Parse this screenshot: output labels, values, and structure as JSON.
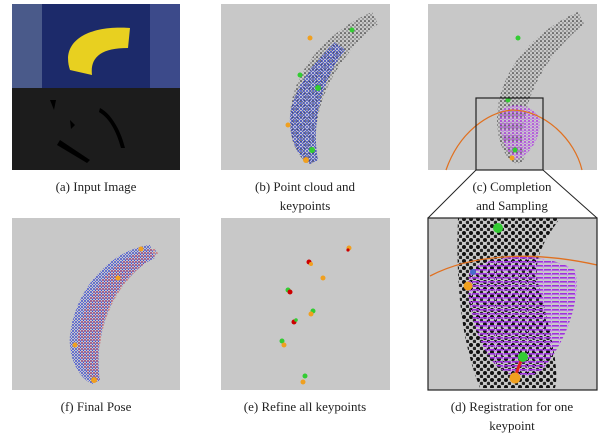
{
  "figure": {
    "panels": [
      {
        "caption": [
          "(a) Input Image"
        ]
      },
      {
        "caption": [
          "(b) Point cloud and",
          "keypoints"
        ]
      },
      {
        "caption": [
          "(c) Completion",
          "and Sampling"
        ]
      },
      {
        "caption": [
          "(f) Final Pose"
        ]
      },
      {
        "caption": [
          "(e) Refine all keypoints"
        ]
      },
      {
        "caption": [
          "(d) Registration for one",
          "keypoint"
        ]
      }
    ]
  }
}
